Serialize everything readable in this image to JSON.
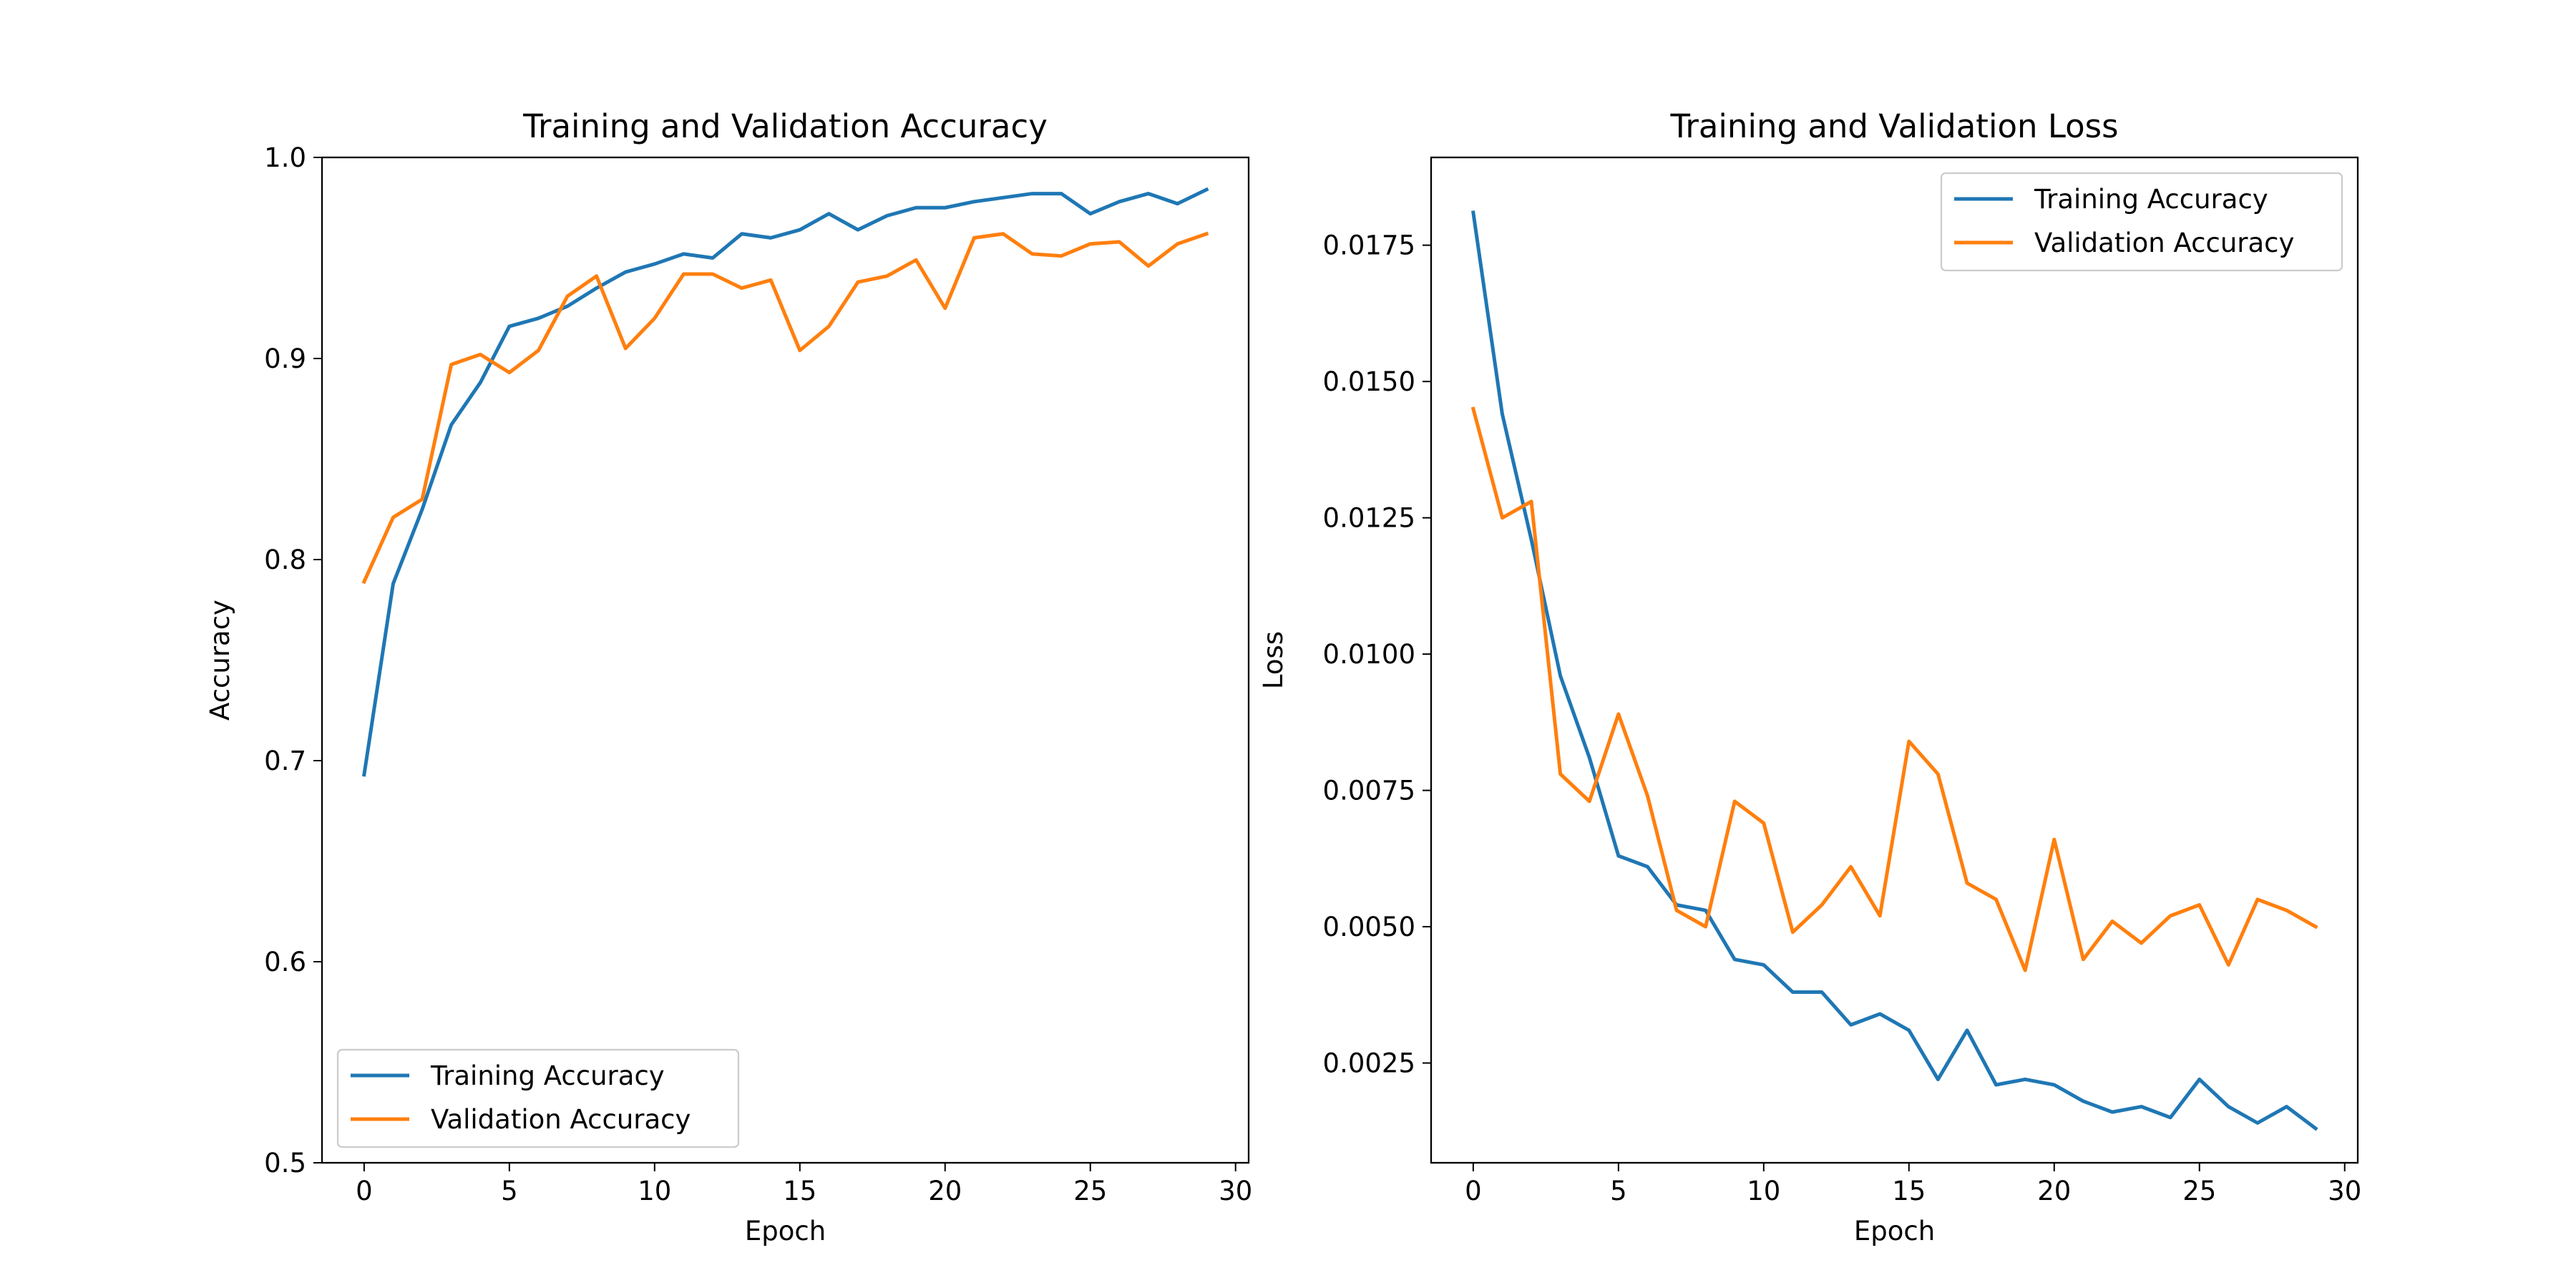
{
  "chart_data": [
    {
      "type": "line",
      "title": "Training and Validation Accuracy",
      "xlabel": "Epoch",
      "ylabel": "Accuracy",
      "xlim": [
        -1.45,
        30.45
      ],
      "ylim": [
        0.5,
        1.0
      ],
      "xticks": [
        0,
        5,
        10,
        15,
        20,
        25,
        30
      ],
      "yticks": [
        0.5,
        0.6,
        0.7,
        0.8,
        0.9,
        1.0
      ],
      "ytick_labels": [
        "0.5",
        "0.6",
        "0.7",
        "0.8",
        "0.9",
        "1.0"
      ],
      "grid": false,
      "legend_position": "lower-left",
      "x": [
        0,
        1,
        2,
        3,
        4,
        5,
        6,
        7,
        8,
        9,
        10,
        11,
        12,
        13,
        14,
        15,
        16,
        17,
        18,
        19,
        20,
        21,
        22,
        23,
        24,
        25,
        26,
        27,
        28,
        29
      ],
      "series": [
        {
          "name": "Training Accuracy",
          "color": "#1f77b4",
          "values": [
            0.693,
            0.788,
            0.825,
            0.867,
            0.888,
            0.916,
            0.92,
            0.926,
            0.935,
            0.943,
            0.947,
            0.952,
            0.95,
            0.962,
            0.96,
            0.964,
            0.972,
            0.964,
            0.971,
            0.975,
            0.975,
            0.978,
            0.98,
            0.982,
            0.982,
            0.972,
            0.978,
            0.982,
            0.977,
            0.984
          ]
        },
        {
          "name": "Validation Accuracy",
          "color": "#ff7f0e",
          "values": [
            0.789,
            0.821,
            0.83,
            0.897,
            0.902,
            0.893,
            0.904,
            0.931,
            0.941,
            0.905,
            0.92,
            0.942,
            0.942,
            0.935,
            0.939,
            0.904,
            0.916,
            0.938,
            0.941,
            0.949,
            0.925,
            0.96,
            0.962,
            0.952,
            0.951,
            0.957,
            0.958,
            0.946,
            0.957,
            0.962
          ]
        }
      ]
    },
    {
      "type": "line",
      "title": "Training and Validation Loss",
      "xlabel": "Epoch",
      "ylabel": "Loss",
      "xlim": [
        -1.45,
        30.45
      ],
      "ylim": [
        0.00067,
        0.01911
      ],
      "xticks": [
        0,
        5,
        10,
        15,
        20,
        25,
        30
      ],
      "yticks": [
        0.0025,
        0.005,
        0.0075,
        0.01,
        0.0125,
        0.015,
        0.0175
      ],
      "ytick_labels": [
        "0.0025",
        "0.0050",
        "0.0075",
        "0.0100",
        "0.0125",
        "0.0150",
        "0.0175"
      ],
      "grid": false,
      "legend_position": "upper-right",
      "x": [
        0,
        1,
        2,
        3,
        4,
        5,
        6,
        7,
        8,
        9,
        10,
        11,
        12,
        13,
        14,
        15,
        16,
        17,
        18,
        19,
        20,
        21,
        22,
        23,
        24,
        25,
        26,
        27,
        28,
        29
      ],
      "series": [
        {
          "name": "Training Accuracy",
          "color": "#1f77b4",
          "values": [
            0.0181,
            0.0144,
            0.0121,
            0.0096,
            0.0081,
            0.0063,
            0.0061,
            0.0054,
            0.0053,
            0.0044,
            0.0043,
            0.0038,
            0.0038,
            0.0032,
            0.0034,
            0.0031,
            0.0022,
            0.0031,
            0.0021,
            0.0022,
            0.0021,
            0.0018,
            0.0016,
            0.0017,
            0.0015,
            0.0022,
            0.0017,
            0.0014,
            0.0017,
            0.0013
          ]
        },
        {
          "name": "Validation Accuracy",
          "color": "#ff7f0e",
          "values": [
            0.0145,
            0.0125,
            0.0128,
            0.0078,
            0.0073,
            0.0089,
            0.0074,
            0.0053,
            0.005,
            0.0073,
            0.0069,
            0.0049,
            0.0054,
            0.0061,
            0.0052,
            0.0084,
            0.0078,
            0.0058,
            0.0055,
            0.0042,
            0.0066,
            0.0044,
            0.0051,
            0.0047,
            0.0052,
            0.0054,
            0.0043,
            0.0055,
            0.0053,
            0.005
          ]
        }
      ]
    }
  ]
}
